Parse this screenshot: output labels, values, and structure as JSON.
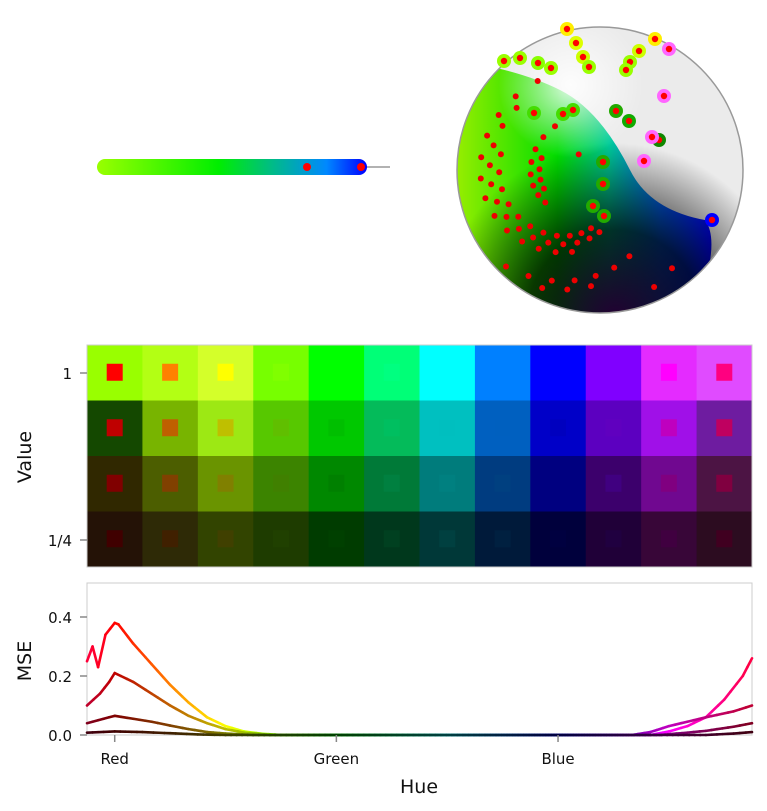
{
  "figure": {
    "grid_ylabel": "Value",
    "grid_yticks": [
      "1",
      "1/4"
    ],
    "mse_ylabel": "MSE",
    "mse_xlabel": "Hue",
    "mse_yticks": [
      "0.0",
      "0.2",
      "0.4"
    ],
    "mse_xticks": [
      "Red",
      "Green",
      "Blue"
    ]
  },
  "chart_data": [
    {
      "type": "scatter",
      "description_kind": "1D embedding of colors (left top panel)",
      "colors_gradient": [
        "#99ff00",
        "#00ff00",
        "#00cc88",
        "#0088ff",
        "#0000ff"
      ],
      "highlight_color": "#ff0000"
    },
    {
      "type": "scatter",
      "description_kind": "spherical embedding (right top panel)",
      "background": "#ebebeb"
    },
    {
      "type": "heatmap",
      "ylabel": "Value",
      "yticks": [
        "1",
        "1/4"
      ],
      "hues": [
        0,
        30,
        60,
        90,
        120,
        150,
        180,
        210,
        240,
        270,
        300,
        330
      ],
      "values": [
        1,
        0.75,
        0.5,
        0.25
      ],
      "reconstructed_colors": [
        [
          "#99ff00",
          "#b3ff14",
          "#d4ff2a",
          "#77ff00",
          "#00ff00",
          "#00ff77",
          "#00ffff",
          "#0080ff",
          "#0000ff",
          "#8000ff",
          "#e42bff",
          "#e04bff"
        ],
        [
          "#144800",
          "#78b400",
          "#9de814",
          "#57c800",
          "#00c800",
          "#04bb5a",
          "#00c0c0",
          "#0060c0",
          "#0000c8",
          "#5c00c0",
          "#a010e8",
          "#6e1ca0"
        ],
        [
          "#302800",
          "#4c5e00",
          "#6a9400",
          "#3c8400",
          "#008800",
          "#007a38",
          "#007c7c",
          "#003c80",
          "#000080",
          "#3c006c",
          "#700890",
          "#4c1444"
        ],
        [
          "#241206",
          "#2e2a06",
          "#324400",
          "#1e3c00",
          "#003c00",
          "#00381c",
          "#003838",
          "#001a3a",
          "#00003c",
          "#200038",
          "#380638",
          "#2c0c20"
        ]
      ]
    },
    {
      "type": "line",
      "xlabel": "Hue",
      "ylabel": "MSE",
      "xticks": [
        {
          "label": "Red",
          "value": 0
        },
        {
          "label": "Green",
          "value": 120
        },
        {
          "label": "Blue",
          "value": 240
        }
      ],
      "xlim": [
        -15,
        345
      ],
      "ylim": [
        0,
        0.52
      ],
      "yticks": [
        0,
        0.2,
        0.4
      ],
      "series": [
        {
          "value": 1,
          "points": [
            [
              -15,
              0.25
            ],
            [
              -12,
              0.3
            ],
            [
              -9,
              0.23
            ],
            [
              -5,
              0.34
            ],
            [
              0,
              0.38
            ],
            [
              2,
              0.375
            ],
            [
              10,
              0.31
            ],
            [
              20,
              0.24
            ],
            [
              30,
              0.17
            ],
            [
              40,
              0.11
            ],
            [
              50,
              0.06
            ],
            [
              60,
              0.03
            ],
            [
              70,
              0.012
            ],
            [
              80,
              0.004
            ],
            [
              90,
              0
            ],
            [
              290,
              0
            ],
            [
              300,
              0.012
            ],
            [
              310,
              0.03
            ],
            [
              320,
              0.06
            ],
            [
              330,
              0.12
            ],
            [
              340,
              0.2
            ],
            [
              345,
              0.26
            ]
          ]
        },
        {
          "value": 0.75,
          "points": [
            [
              -15,
              0.1
            ],
            [
              -8,
              0.14
            ],
            [
              -3,
              0.18
            ],
            [
              0,
              0.21
            ],
            [
              10,
              0.18
            ],
            [
              20,
              0.14
            ],
            [
              30,
              0.1
            ],
            [
              40,
              0.065
            ],
            [
              50,
              0.04
            ],
            [
              60,
              0.02
            ],
            [
              70,
              0.008
            ],
            [
              85,
              0
            ],
            [
              280,
              0
            ],
            [
              290,
              0.01
            ],
            [
              300,
              0.03
            ],
            [
              310,
              0.045
            ],
            [
              320,
              0.06
            ],
            [
              335,
              0.08
            ],
            [
              345,
              0.1
            ]
          ]
        },
        {
          "value": 0.5,
          "points": [
            [
              -15,
              0.04
            ],
            [
              0,
              0.065
            ],
            [
              10,
              0.055
            ],
            [
              20,
              0.045
            ],
            [
              30,
              0.032
            ],
            [
              40,
              0.02
            ],
            [
              50,
              0.01
            ],
            [
              60,
              0.005
            ],
            [
              75,
              0
            ],
            [
              295,
              0
            ],
            [
              310,
              0.008
            ],
            [
              320,
              0.014
            ],
            [
              335,
              0.028
            ],
            [
              345,
              0.04
            ]
          ]
        },
        {
          "value": 0.25,
          "points": [
            [
              -15,
              0.008
            ],
            [
              0,
              0.012
            ],
            [
              15,
              0.01
            ],
            [
              30,
              0.006
            ],
            [
              45,
              0.002
            ],
            [
              60,
              0
            ],
            [
              320,
              0
            ],
            [
              335,
              0.005
            ],
            [
              345,
              0.01
            ]
          ]
        }
      ]
    }
  ]
}
